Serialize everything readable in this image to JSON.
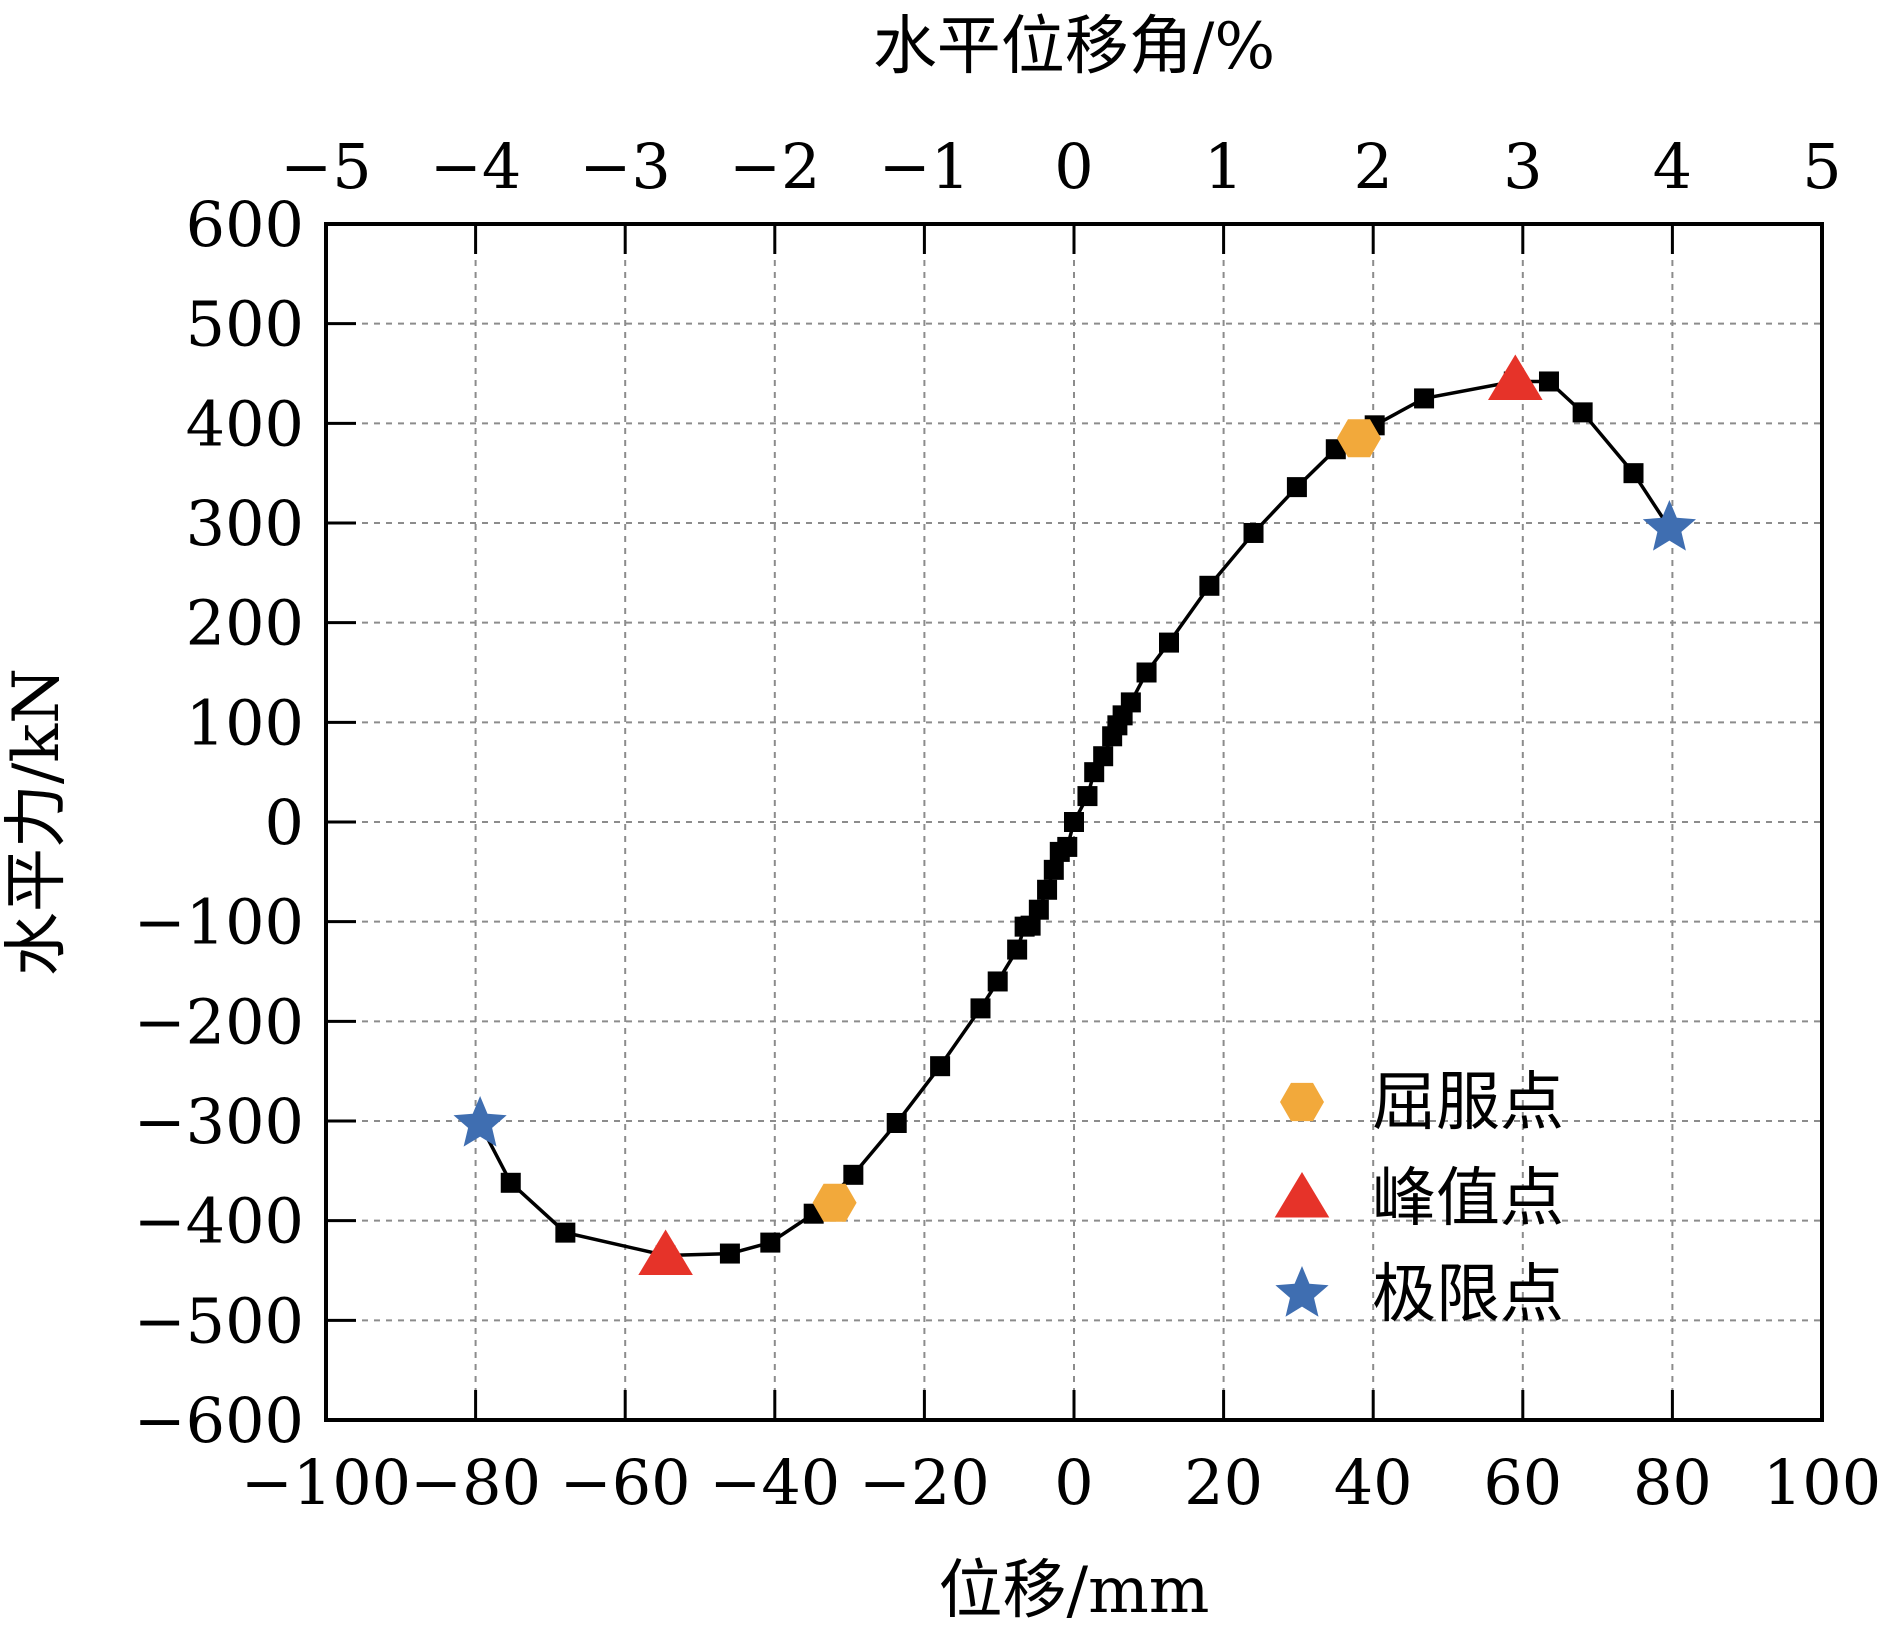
{
  "chart_data": {
    "type": "scatter",
    "xlabel": "位移/mm",
    "ylabel": "水平力/kN",
    "x2label": "水平位移角/%",
    "xlim": [
      -100,
      100
    ],
    "ylim": [
      -600,
      600
    ],
    "x2lim": [
      -5,
      5
    ],
    "x_ticks": [
      -100,
      -80,
      -60,
      -40,
      -20,
      0,
      20,
      40,
      60,
      80,
      100
    ],
    "x_tick_labels": [
      "−100",
      "−80",
      "−60",
      "−40",
      "−20",
      "0",
      "20",
      "40",
      "60",
      "80",
      "100"
    ],
    "y_ticks": [
      -600,
      -500,
      -400,
      -300,
      -200,
      -100,
      0,
      100,
      200,
      300,
      400,
      500,
      600
    ],
    "y_tick_labels": [
      "−600",
      "−500",
      "−400",
      "−300",
      "−200",
      "−100",
      "0",
      "100",
      "200",
      "300",
      "400",
      "500",
      "600"
    ],
    "x2_ticks": [
      -5,
      -4,
      -3,
      -2,
      -1,
      0,
      1,
      2,
      3,
      4,
      5
    ],
    "x2_tick_labels": [
      "−5",
      "−4",
      "−3",
      "−2",
      "−1",
      "0",
      "1",
      "2",
      "3",
      "4",
      "5"
    ],
    "grid": true,
    "legend_position": "bottom-right",
    "series": [
      {
        "marker": "square",
        "color": "#000000",
        "x": [
          -79.4,
          -75.3,
          -68.0,
          -54.6,
          -46.0,
          -40.6,
          -34.8,
          -29.5,
          -23.7,
          -17.9,
          -12.5,
          -10.2,
          -7.6,
          -6.6,
          -5.8,
          -4.7,
          -3.6,
          -2.7,
          -1.9,
          -0.9,
          0.0,
          1.8,
          2.7,
          3.9,
          5.1,
          5.8,
          6.5,
          7.6,
          9.7,
          12.7,
          18.1,
          24.0,
          29.8,
          35.0,
          40.2,
          46.8,
          58.8,
          63.5,
          68.0,
          74.8,
          79.6
        ],
        "y": [
          -303,
          -362,
          -412,
          -435,
          -433,
          -422,
          -393,
          -354,
          -302,
          -245,
          -187,
          -160,
          -128,
          -105,
          -104,
          -88,
          -68,
          -48,
          -30,
          -25,
          0,
          26,
          50,
          66,
          86,
          97,
          107,
          120,
          150,
          180,
          237,
          290,
          336,
          374,
          398,
          425,
          442,
          442,
          411,
          350,
          295
        ]
      },
      {
        "name": "屈服点",
        "marker": "hexagon",
        "color": "#f2a93b",
        "x": [
          -32.0,
          38.1
        ],
        "y": [
          -382,
          385
        ]
      },
      {
        "name": "峰值点",
        "marker": "triangle",
        "color": "#e63329",
        "x": [
          -54.6,
          59.0
        ],
        "y": [
          -435,
          443
        ]
      },
      {
        "name": "极限点",
        "marker": "star",
        "color": "#3f6eb1",
        "x": [
          -79.4,
          79.6
        ],
        "y": [
          -303,
          295
        ]
      }
    ]
  },
  "colors": {
    "grid": "#8c8c8c",
    "axis": "#000000"
  }
}
